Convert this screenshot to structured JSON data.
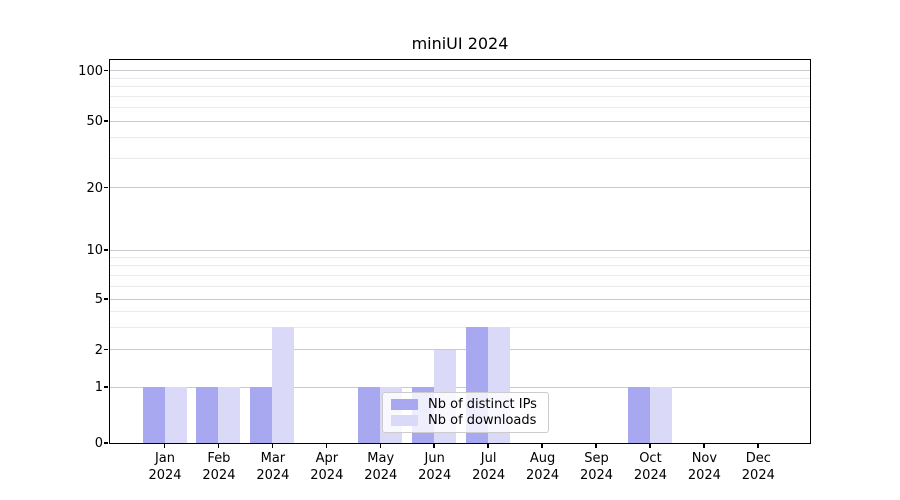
{
  "chart_data": {
    "type": "bar",
    "title": "miniUI 2024",
    "categories": [
      "Jan",
      "Feb",
      "Mar",
      "Apr",
      "May",
      "Jun",
      "Jul",
      "Aug",
      "Sep",
      "Oct",
      "Nov",
      "Dec"
    ],
    "category_year": "2024",
    "series": [
      {
        "name": "Nb of distinct IPs",
        "color": "#a8a8f0",
        "values": [
          1,
          1,
          1,
          0,
          1,
          1,
          3,
          0,
          0,
          1,
          0,
          0
        ]
      },
      {
        "name": "Nb of downloads",
        "color": "#dadaf8",
        "values": [
          1,
          1,
          3,
          0,
          1,
          2,
          3,
          0,
          0,
          1,
          0,
          0
        ]
      }
    ],
    "xlabel": "",
    "ylabel": "",
    "yscale": "log above 1, linear 0-1",
    "y_ticks": [
      0,
      1,
      2,
      5,
      10,
      20,
      50,
      100
    ],
    "y_minor_gridlines": [
      3,
      4,
      6,
      7,
      8,
      9,
      30,
      40,
      60,
      70,
      80,
      90
    ],
    "ylim": [
      0,
      115
    ],
    "grid": "horizontal major+minor",
    "legend_position": "inside lower center",
    "colors": {
      "frame": "#000000",
      "text": "#000000",
      "major_grid": "#c9c9d2",
      "minor_grid": "#ebebeb",
      "background": "#ffffff",
      "legend_border": "#cccccc"
    }
  }
}
